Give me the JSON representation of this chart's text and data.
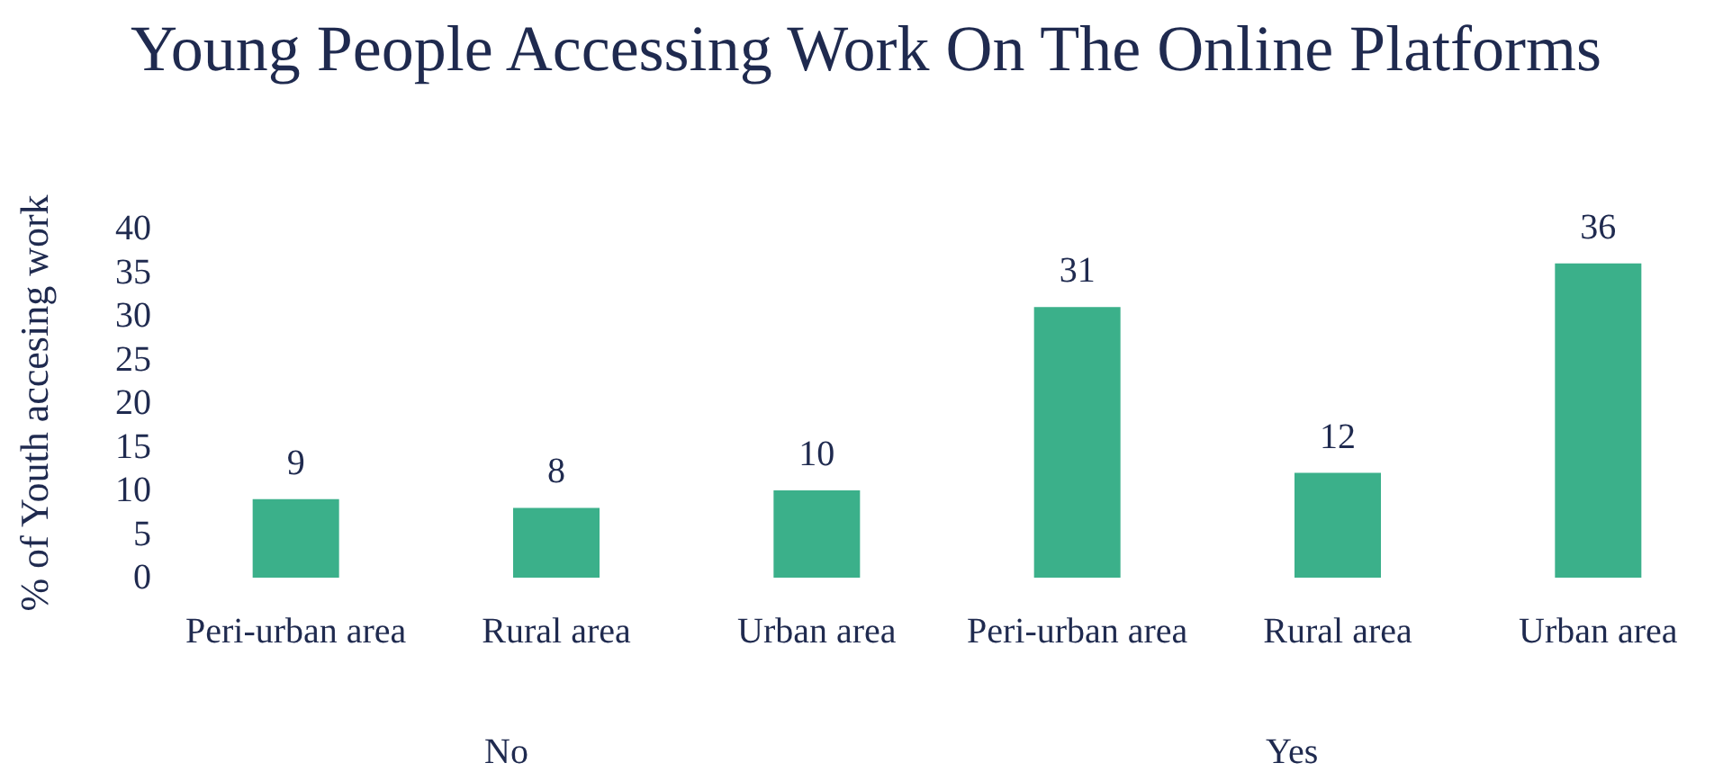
{
  "chart_data": {
    "type": "bar",
    "title": "Young People Accessing Work On The Online Platforms",
    "ylabel": "% of Youth accesing work",
    "categories": [
      "Peri-urban area",
      "Rural area",
      "Urban area",
      "Peri-urban area",
      "Rural area",
      "Urban area"
    ],
    "values": [
      9,
      8,
      10,
      31,
      12,
      36
    ],
    "color": "#3bb08a",
    "ylim": [
      0,
      40
    ],
    "yticks": [
      0,
      5,
      10,
      15,
      20,
      25,
      30,
      35,
      40
    ],
    "grid": false,
    "data_labels": true,
    "annotations": [
      "No",
      "Yes"
    ]
  }
}
